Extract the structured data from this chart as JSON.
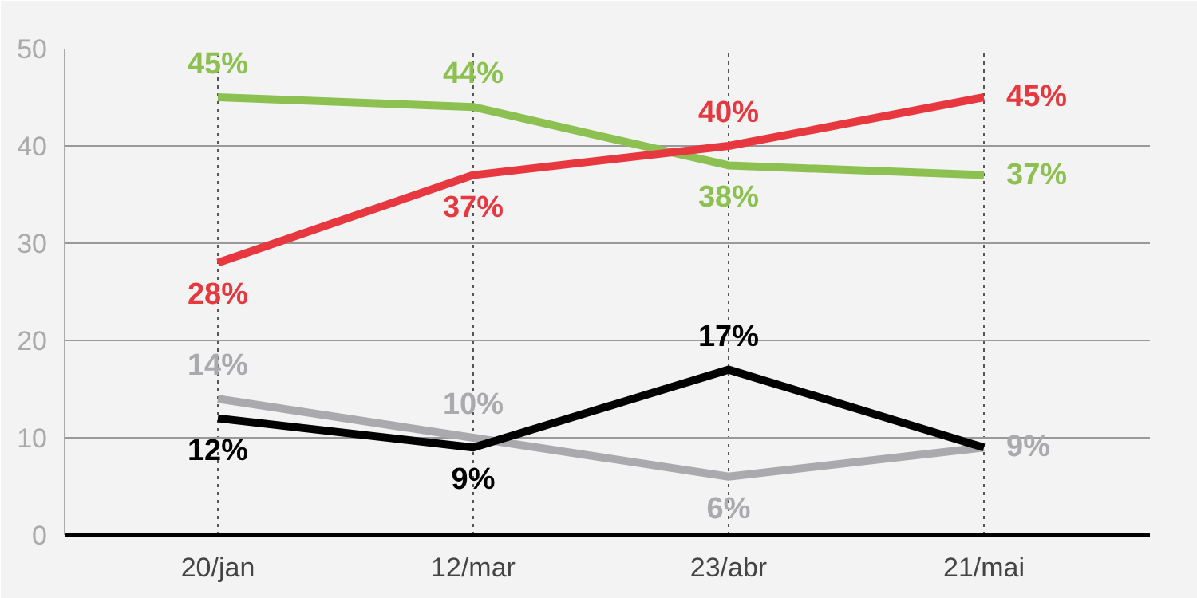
{
  "chart_data": {
    "type": "line",
    "categories": [
      "20/jan",
      "12/mar",
      "23/abr",
      "21/mai"
    ],
    "series": [
      {
        "color": "#8cc152",
        "values": [
          45,
          44,
          38,
          37
        ],
        "value_labels": [
          "45%",
          "44%",
          "38%",
          "37%"
        ]
      },
      {
        "color": "#e8383f",
        "values": [
          28,
          37,
          40,
          45
        ],
        "value_labels": [
          "28%",
          "37%",
          "40%",
          "45%"
        ]
      },
      {
        "color": "#aaaaae",
        "values": [
          14,
          10,
          6,
          9
        ],
        "value_labels": [
          "14%",
          "10%",
          "6%",
          "9%"
        ]
      },
      {
        "color": "#000000",
        "values": [
          12,
          9,
          17,
          9
        ],
        "value_labels": [
          "12%",
          "9%",
          "17%",
          null
        ]
      }
    ],
    "ylim": [
      0,
      50
    ],
    "yticks": [
      0,
      10,
      20,
      30,
      40,
      50
    ],
    "grid": true,
    "marker": "none",
    "line_style": "solid"
  }
}
